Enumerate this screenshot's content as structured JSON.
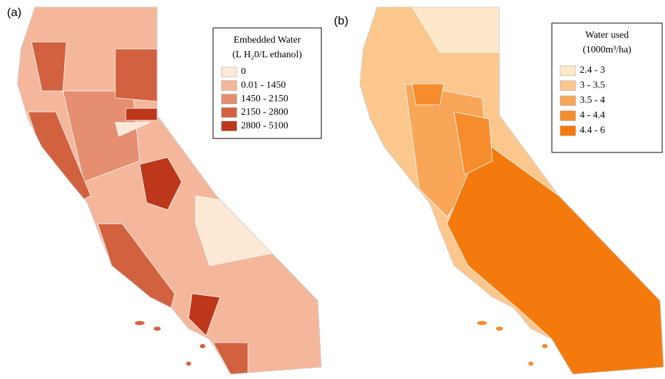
{
  "panels": [
    {
      "label": "(a)",
      "legend": {
        "title": "Embedded Water",
        "subtitle": "(L H₂0/L ethanol)",
        "items": [
          {
            "label": "0",
            "color": "#fde9d6"
          },
          {
            "label": "0.01 - 1450",
            "color": "#f4b79c"
          },
          {
            "label": "1450 - 2150",
            "color": "#e58e70"
          },
          {
            "label": "2150 - 2800",
            "color": "#d2623f"
          },
          {
            "label": "2800 - 5100",
            "color": "#bd371b"
          }
        ]
      }
    },
    {
      "label": "(b)",
      "legend": {
        "title": "Water used",
        "subtitle": "(1000m³/ha)",
        "items": [
          {
            "label": "2.4 - 3",
            "color": "#fde8c9"
          },
          {
            "label": "3 - 3.5",
            "color": "#fcc78d"
          },
          {
            "label": "3.5 - 4",
            "color": "#f9a659"
          },
          {
            "label": "4 - 4.4",
            "color": "#f68c2c"
          },
          {
            "label": "4.4 - 6",
            "color": "#f47a0e"
          }
        ]
      }
    }
  ]
}
